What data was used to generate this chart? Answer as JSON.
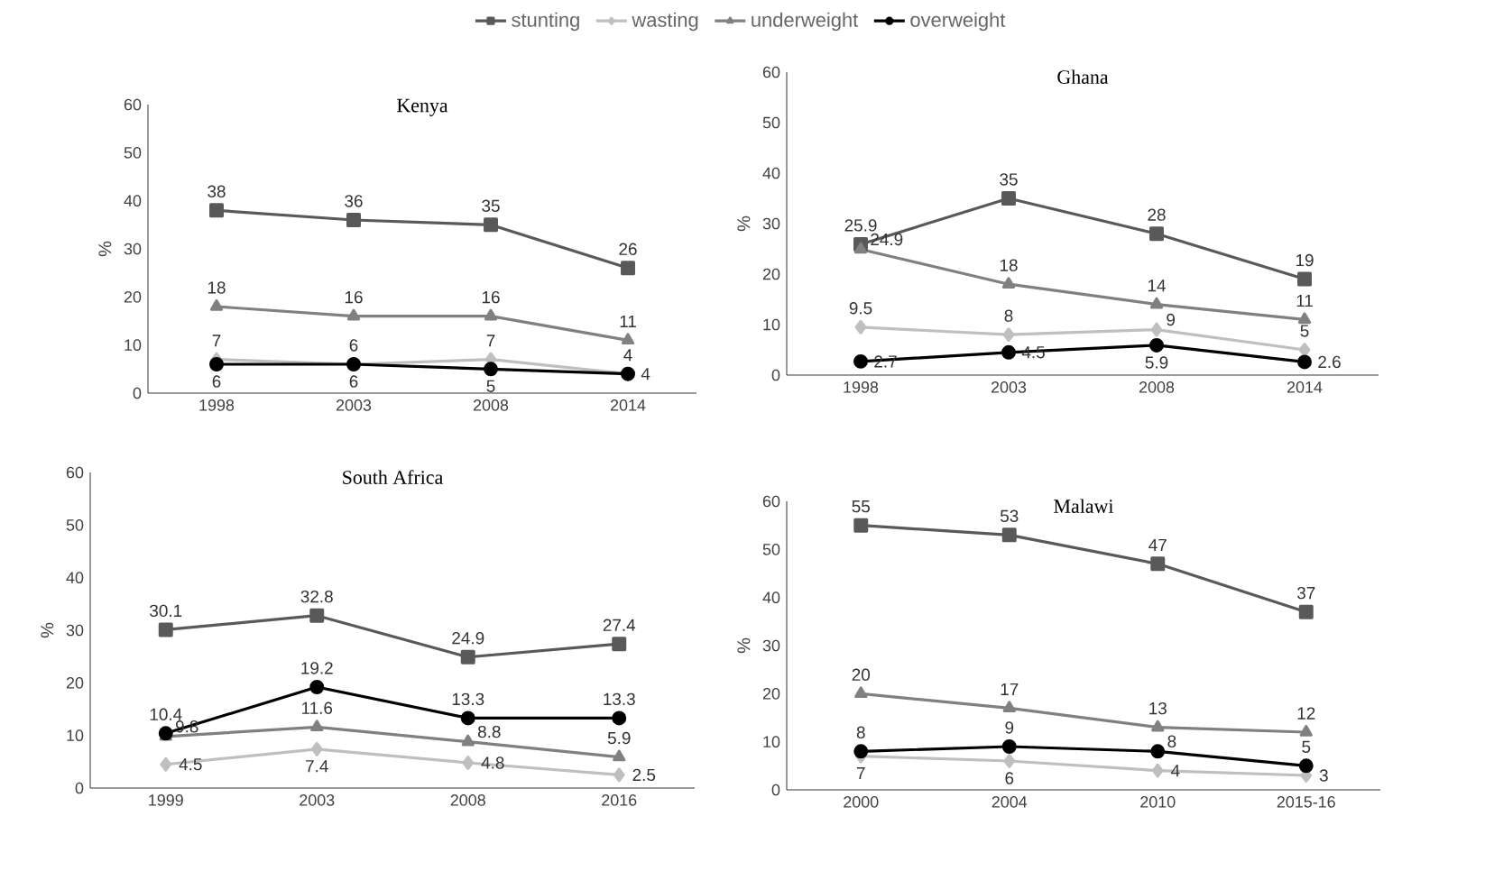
{
  "chart_data": [
    {
      "type": "line",
      "title": "Kenya",
      "ylabel": "%",
      "categories": [
        "1998",
        "2003",
        "2008",
        "2014"
      ],
      "ylim": [
        0,
        60
      ],
      "yticks": [
        0,
        10,
        20,
        30,
        40,
        50,
        60
      ],
      "data_labels": true,
      "legend": "top",
      "grid": false,
      "series": [
        {
          "name": "stunting",
          "color": "#595959",
          "marker": "square",
          "values": [
            38,
            36,
            35,
            26
          ]
        },
        {
          "name": "wasting",
          "color": "#bfbfbf",
          "marker": "diamond",
          "values": [
            7,
            6,
            7,
            4
          ]
        },
        {
          "name": "underweight",
          "color": "#808080",
          "marker": "triangle",
          "values": [
            18,
            16,
            16,
            11
          ]
        },
        {
          "name": "overweight",
          "color": "#000000",
          "marker": "circle",
          "values": [
            6,
            6,
            5,
            4
          ]
        }
      ]
    },
    {
      "type": "line",
      "title": "Ghana",
      "ylabel": "%",
      "categories": [
        "1998",
        "2003",
        "2008",
        "2014"
      ],
      "ylim": [
        0,
        60
      ],
      "yticks": [
        0,
        10,
        20,
        30,
        40,
        50,
        60
      ],
      "data_labels": true,
      "grid": false,
      "series": [
        {
          "color": "#595959",
          "marker": "square",
          "values": [
            25.9,
            35,
            28,
            19
          ]
        },
        {
          "color": "#bfbfbf",
          "marker": "diamond",
          "values": [
            9.5,
            8,
            9,
            5
          ]
        },
        {
          "color": "#808080",
          "marker": "triangle",
          "values": [
            24.9,
            18,
            14,
            11
          ]
        },
        {
          "color": "#000000",
          "marker": "circle",
          "values": [
            2.7,
            4.5,
            5.9,
            2.6
          ]
        }
      ]
    },
    {
      "type": "line",
      "title": "South Africa",
      "ylabel": "%",
      "categories": [
        "1999",
        "2003",
        "2008",
        "2016"
      ],
      "ylim": [
        0,
        60
      ],
      "yticks": [
        0,
        10,
        20,
        30,
        40,
        50,
        60
      ],
      "data_labels": true,
      "grid": false,
      "series": [
        {
          "color": "#595959",
          "marker": "square",
          "values": [
            30.1,
            32.8,
            24.9,
            27.4
          ]
        },
        {
          "color": "#bfbfbf",
          "marker": "diamond",
          "values": [
            4.5,
            7.4,
            4.8,
            2.5
          ]
        },
        {
          "color": "#808080",
          "marker": "triangle",
          "values": [
            9.8,
            11.6,
            8.8,
            5.9
          ]
        },
        {
          "color": "#000000",
          "marker": "circle",
          "values": [
            10.4,
            19.2,
            13.3,
            13.3
          ]
        }
      ]
    },
    {
      "type": "line",
      "title": "Malawi",
      "ylabel": "%",
      "categories": [
        "2000",
        "2004",
        "2010",
        "2015-16"
      ],
      "ylim": [
        0,
        60
      ],
      "yticks": [
        0,
        10,
        20,
        30,
        40,
        50,
        60
      ],
      "data_labels": true,
      "grid": false,
      "series": [
        {
          "color": "#595959",
          "marker": "square",
          "values": [
            55,
            53,
            47,
            37
          ]
        },
        {
          "color": "#bfbfbf",
          "marker": "diamond",
          "values": [
            7,
            6,
            4,
            3
          ]
        },
        {
          "color": "#808080",
          "marker": "triangle",
          "values": [
            20,
            17,
            13,
            12
          ]
        },
        {
          "color": "#000000",
          "marker": "circle",
          "values": [
            8,
            9,
            8,
            5
          ]
        }
      ]
    }
  ]
}
